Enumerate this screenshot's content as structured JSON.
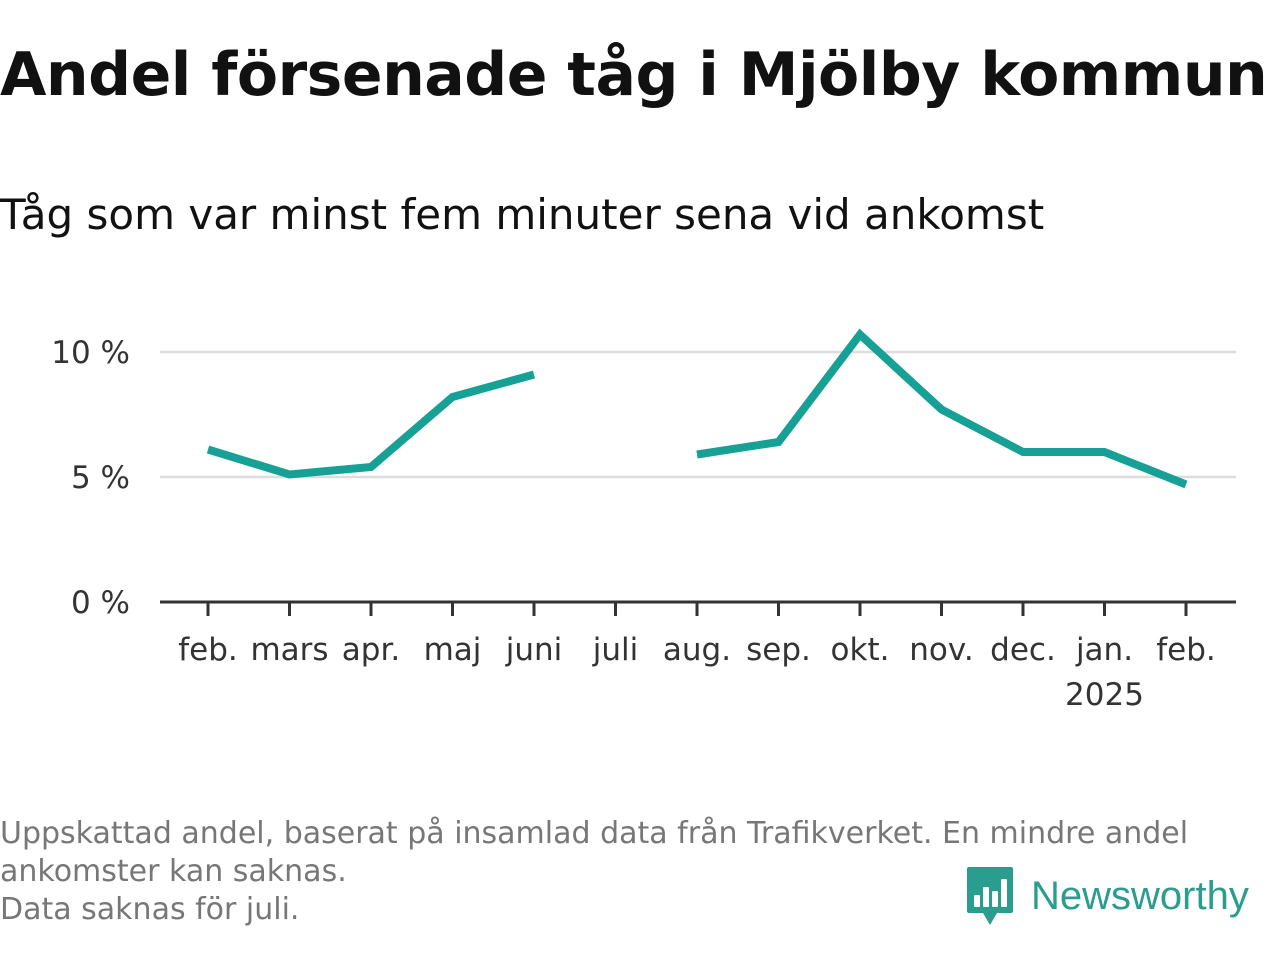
{
  "header": {
    "title": "Andel försenade tåg i Mjölby kommun",
    "subtitle": "Tåg som var minst fem minuter sena vid ankomst"
  },
  "chart_data": {
    "type": "line",
    "title": "Andel försenade tåg i Mjölby kommun",
    "subtitle": "Tåg som var minst fem minuter sena vid ankomst",
    "xlabel": "",
    "ylabel": "",
    "categories": [
      "feb.",
      "mars",
      "apr.",
      "maj",
      "juni",
      "juli",
      "aug.",
      "sep.",
      "okt.",
      "nov.",
      "dec.",
      "jan.",
      "feb."
    ],
    "category_sublabels": [
      "",
      "",
      "",
      "",
      "",
      "",
      "",
      "",
      "",
      "",
      "",
      "2025",
      ""
    ],
    "series": [
      {
        "values": [
          6.1,
          5.1,
          5.4,
          8.2,
          9.1,
          null,
          5.9,
          6.4,
          10.7,
          7.7,
          6.0,
          6.0,
          4.7
        ]
      }
    ],
    "ylim": [
      0,
      11.5
    ],
    "yticks": [
      0,
      5,
      10
    ],
    "ytick_labels": [
      "0 %",
      "5 %",
      "10 %"
    ],
    "grid": true,
    "legend": "none",
    "colors": {
      "line": "#17a096",
      "grid": "#dddddd",
      "axis": "#333333"
    }
  },
  "footer": {
    "note_lines": [
      "Uppskattad andel, baserat på insamlad data från Trafikverket. En mindre andel",
      "ankomster kan saknas.",
      "Data saknas för juli."
    ],
    "brand": "Newsworthy",
    "brand_icon": "newsworthy-logo-icon"
  }
}
